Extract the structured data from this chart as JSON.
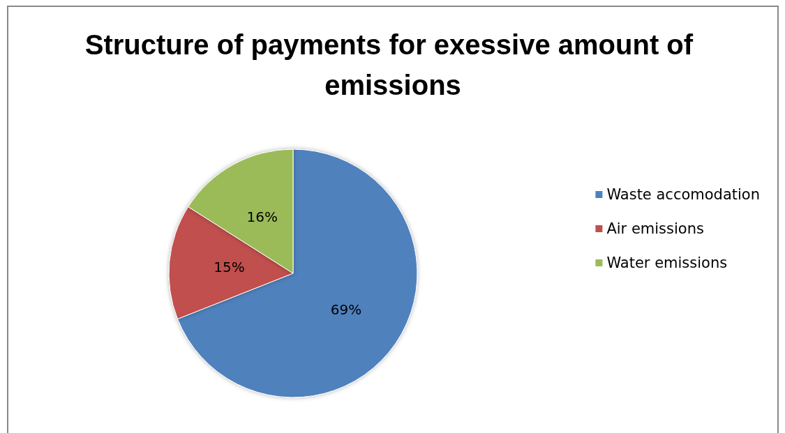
{
  "chart_data": {
    "type": "pie",
    "title": "Structure of payments for exessive amount of emissions",
    "categories": [
      "Waste accomodation",
      "Air emissions",
      "Water emissions"
    ],
    "values": [
      69,
      15,
      16
    ],
    "colors": [
      "#4f81bd",
      "#c0504d",
      "#9bbb59"
    ],
    "value_labels": [
      "69%",
      "15%",
      "16%"
    ],
    "legend": "right"
  }
}
